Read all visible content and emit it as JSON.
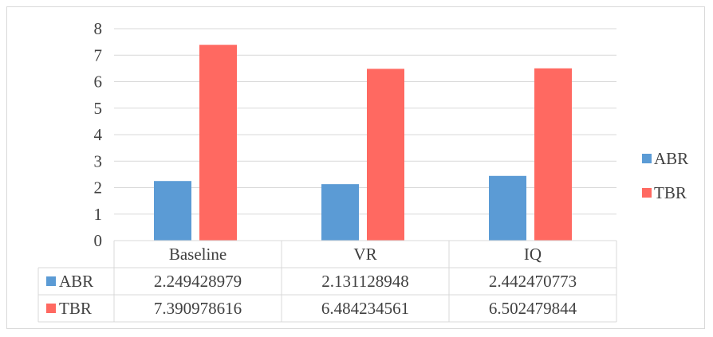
{
  "chart_data": {
    "type": "bar",
    "categories": [
      "Baseline",
      "VR",
      "IQ"
    ],
    "series": [
      {
        "name": "ABR",
        "color": "#5b9bd5",
        "values": [
          2.249428979,
          2.131128948,
          2.442470773
        ],
        "labels": [
          "2.249428979",
          "2.131128948",
          "2.442470773"
        ]
      },
      {
        "name": "TBR",
        "color": "#ff6961",
        "values": [
          7.390978616,
          6.484234561,
          6.502479844
        ],
        "labels": [
          "7.390978616",
          "6.484234561",
          "6.502479844"
        ]
      }
    ],
    "yticks": [
      "0",
      "1",
      "2",
      "3",
      "4",
      "5",
      "6",
      "7",
      "8"
    ],
    "ylim": [
      0,
      8
    ],
    "grid": true,
    "legend": "right",
    "data_table": true
  }
}
